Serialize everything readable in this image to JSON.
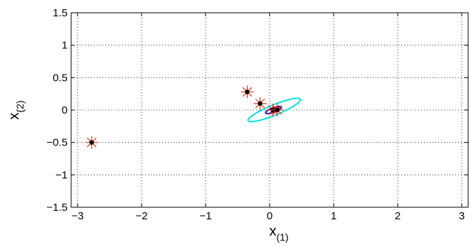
{
  "chart_data": {
    "type": "scatter",
    "title": "",
    "xlabel": {
      "main": "x",
      "sub": "(1)"
    },
    "ylabel": {
      "main": "x",
      "sub": "(2)"
    },
    "xlim": [
      -3.1,
      3.1
    ],
    "ylim": [
      -1.5,
      1.5
    ],
    "xticks": [
      -3,
      -2,
      -1,
      0,
      1,
      2,
      3
    ],
    "yticks": [
      -1.5,
      -1,
      -0.5,
      0,
      0.5,
      1,
      1.5
    ],
    "xtick_labels": [
      "−3",
      "−2",
      "−1",
      "0",
      "1",
      "2",
      "3"
    ],
    "ytick_labels": [
      "−1.5",
      "−1",
      "−0.5",
      "0",
      "0.5",
      "1",
      "1.5"
    ],
    "grid": true,
    "grid_style": "dotted",
    "points": [
      {
        "x": -2.78,
        "y": -0.5
      },
      {
        "x": -0.35,
        "y": 0.28
      },
      {
        "x": -0.15,
        "y": 0.1
      },
      {
        "x": 0.05,
        "y": 0.0
      },
      {
        "x": 0.12,
        "y": 0.0
      }
    ],
    "marker_colors": {
      "star": "#ff3300",
      "dot": "#000000"
    },
    "ellipses": [
      {
        "name": "cyan-ellipse",
        "cx": 0.07,
        "cy": 0.0,
        "a": 0.44,
        "b": 0.08,
        "angle_deg": 22,
        "color": "#00e5e5"
      },
      {
        "name": "blue-ellipse",
        "cx": 0.06,
        "cy": 0.0,
        "a": 0.13,
        "b": 0.035,
        "angle_deg": 20,
        "color": "#1010d0"
      },
      {
        "name": "red-ellipse",
        "cx": 0.09,
        "cy": 0.01,
        "a": 0.055,
        "b": 0.02,
        "angle_deg": 20,
        "color": "#cc0000"
      }
    ]
  }
}
